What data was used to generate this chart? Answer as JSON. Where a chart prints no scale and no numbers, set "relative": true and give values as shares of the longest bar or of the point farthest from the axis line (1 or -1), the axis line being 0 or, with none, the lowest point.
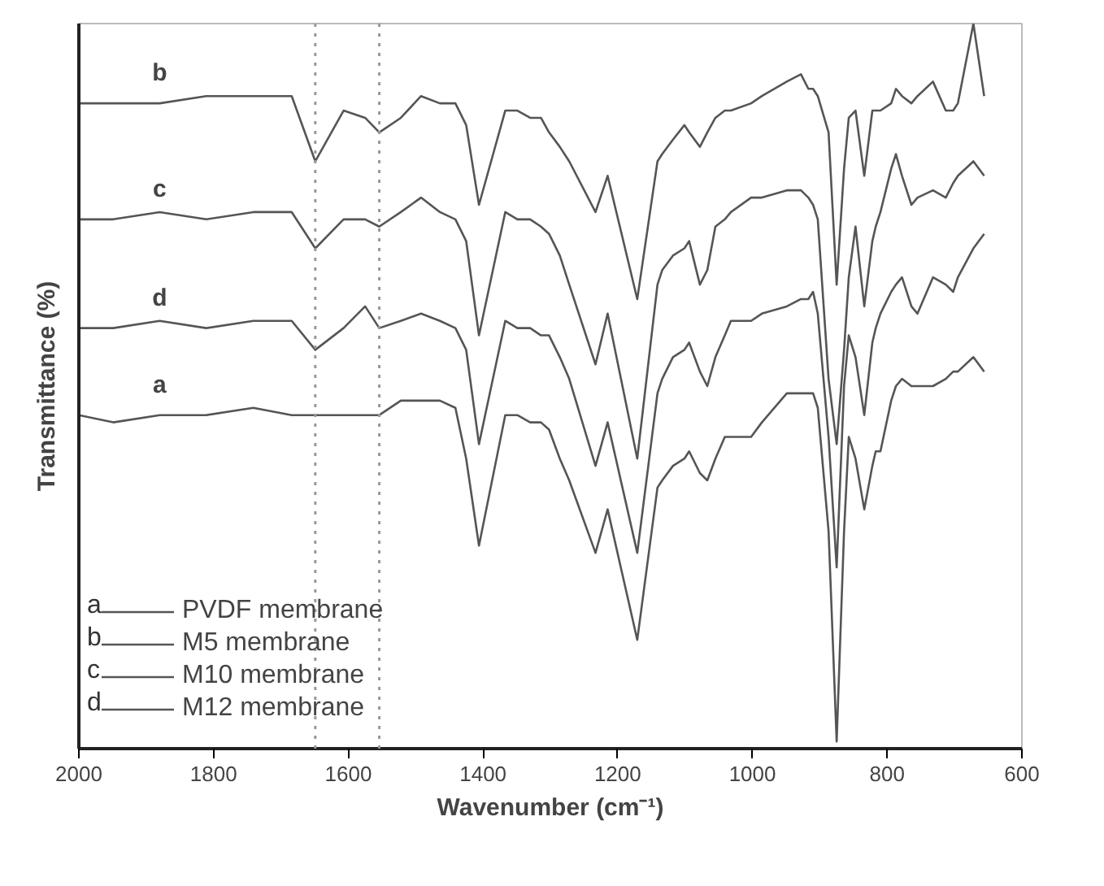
{
  "chart_data": {
    "type": "line",
    "relative": true,
    "xlabel": "Wavenumber (cm⁻¹)",
    "ylabel": "Transmittance (%)",
    "xlim": [
      2000,
      600
    ],
    "xticks": [
      2000,
      1800,
      1600,
      1400,
      1200,
      1000,
      800,
      600
    ],
    "grid": false,
    "legend": "bottom left",
    "marker": "none",
    "line_style": "solid",
    "x": [
      2000,
      1949,
      1880,
      1811,
      1741,
      1684,
      1649,
      1607,
      1575,
      1554,
      1522,
      1492,
      1464,
      1441,
      1425,
      1406,
      1367,
      1349,
      1330,
      1314,
      1302,
      1286,
      1272,
      1233,
      1215,
      1171,
      1141,
      1134,
      1118,
      1101,
      1094,
      1078,
      1067,
      1055,
      1041,
      1032,
      1002,
      986,
      949,
      928,
      917,
      910,
      903,
      887,
      875,
      864,
      857,
      847,
      834,
      822,
      817,
      810,
      794,
      787,
      778,
      764,
      755,
      732,
      713,
      702,
      695,
      672,
      656
    ],
    "series": [
      {
        "name": "PVDF membrane",
        "color": "#555555",
        "values": [
          0.46,
          0.45,
          0.46,
          0.46,
          0.47,
          0.46,
          0.46,
          0.46,
          0.46,
          0.46,
          0.48,
          0.48,
          0.48,
          0.47,
          0.4,
          0.28,
          0.46,
          0.46,
          0.45,
          0.45,
          0.44,
          0.4,
          0.37,
          0.27,
          0.33,
          0.15,
          0.36,
          0.37,
          0.39,
          0.4,
          0.41,
          0.38,
          0.37,
          0.4,
          0.43,
          0.43,
          0.43,
          0.45,
          0.49,
          0.49,
          0.49,
          0.49,
          0.47,
          0.3,
          0.01,
          0.3,
          0.43,
          0.4,
          0.33,
          0.39,
          0.41,
          0.41,
          0.48,
          0.5,
          0.51,
          0.5,
          0.5,
          0.5,
          0.51,
          0.52,
          0.52,
          0.54,
          0.52
        ]
      },
      {
        "name": "M5 membrane",
        "color": "#555555",
        "values": [
          0.89,
          0.89,
          0.89,
          0.9,
          0.9,
          0.9,
          0.81,
          0.88,
          0.87,
          0.85,
          0.87,
          0.9,
          0.89,
          0.89,
          0.86,
          0.75,
          0.88,
          0.88,
          0.87,
          0.87,
          0.85,
          0.83,
          0.81,
          0.74,
          0.79,
          0.62,
          0.81,
          0.82,
          0.84,
          0.86,
          0.85,
          0.83,
          0.85,
          0.87,
          0.88,
          0.88,
          0.89,
          0.9,
          0.92,
          0.93,
          0.91,
          0.91,
          0.9,
          0.85,
          0.64,
          0.8,
          0.87,
          0.88,
          0.79,
          0.88,
          0.88,
          0.88,
          0.89,
          0.91,
          0.9,
          0.89,
          0.9,
          0.92,
          0.88,
          0.88,
          0.89,
          1.0,
          0.9
        ]
      },
      {
        "name": "M10 membrane",
        "color": "#555555",
        "values": [
          0.73,
          0.73,
          0.74,
          0.73,
          0.74,
          0.74,
          0.69,
          0.73,
          0.73,
          0.72,
          0.74,
          0.76,
          0.74,
          0.73,
          0.7,
          0.57,
          0.74,
          0.73,
          0.73,
          0.72,
          0.71,
          0.68,
          0.64,
          0.53,
          0.6,
          0.4,
          0.64,
          0.66,
          0.68,
          0.69,
          0.7,
          0.64,
          0.66,
          0.72,
          0.73,
          0.74,
          0.76,
          0.76,
          0.77,
          0.77,
          0.76,
          0.75,
          0.73,
          0.51,
          0.42,
          0.55,
          0.65,
          0.72,
          0.61,
          0.7,
          0.72,
          0.74,
          0.8,
          0.82,
          0.79,
          0.75,
          0.76,
          0.77,
          0.76,
          0.78,
          0.79,
          0.81,
          0.79
        ]
      },
      {
        "name": "M12 membrane",
        "color": "#555555",
        "values": [
          0.58,
          0.58,
          0.59,
          0.58,
          0.59,
          0.59,
          0.55,
          0.58,
          0.61,
          0.58,
          0.59,
          0.6,
          0.59,
          0.58,
          0.55,
          0.42,
          0.59,
          0.58,
          0.58,
          0.57,
          0.57,
          0.54,
          0.51,
          0.39,
          0.45,
          0.27,
          0.49,
          0.51,
          0.54,
          0.55,
          0.56,
          0.52,
          0.5,
          0.54,
          0.57,
          0.59,
          0.59,
          0.6,
          0.61,
          0.62,
          0.62,
          0.63,
          0.6,
          0.43,
          0.25,
          0.5,
          0.57,
          0.54,
          0.46,
          0.56,
          0.58,
          0.6,
          0.63,
          0.64,
          0.65,
          0.61,
          0.6,
          0.65,
          0.64,
          0.63,
          0.65,
          0.69,
          0.71
        ]
      }
    ],
    "annotations": [
      "a",
      "b",
      "c",
      "d"
    ],
    "ref_lines": [
      {
        "axis": "x",
        "value": 1649,
        "color": "#999999",
        "line_style": "dotted"
      },
      {
        "axis": "x",
        "value": 1554,
        "color": "#999999",
        "line_style": "dotted"
      }
    ]
  }
}
